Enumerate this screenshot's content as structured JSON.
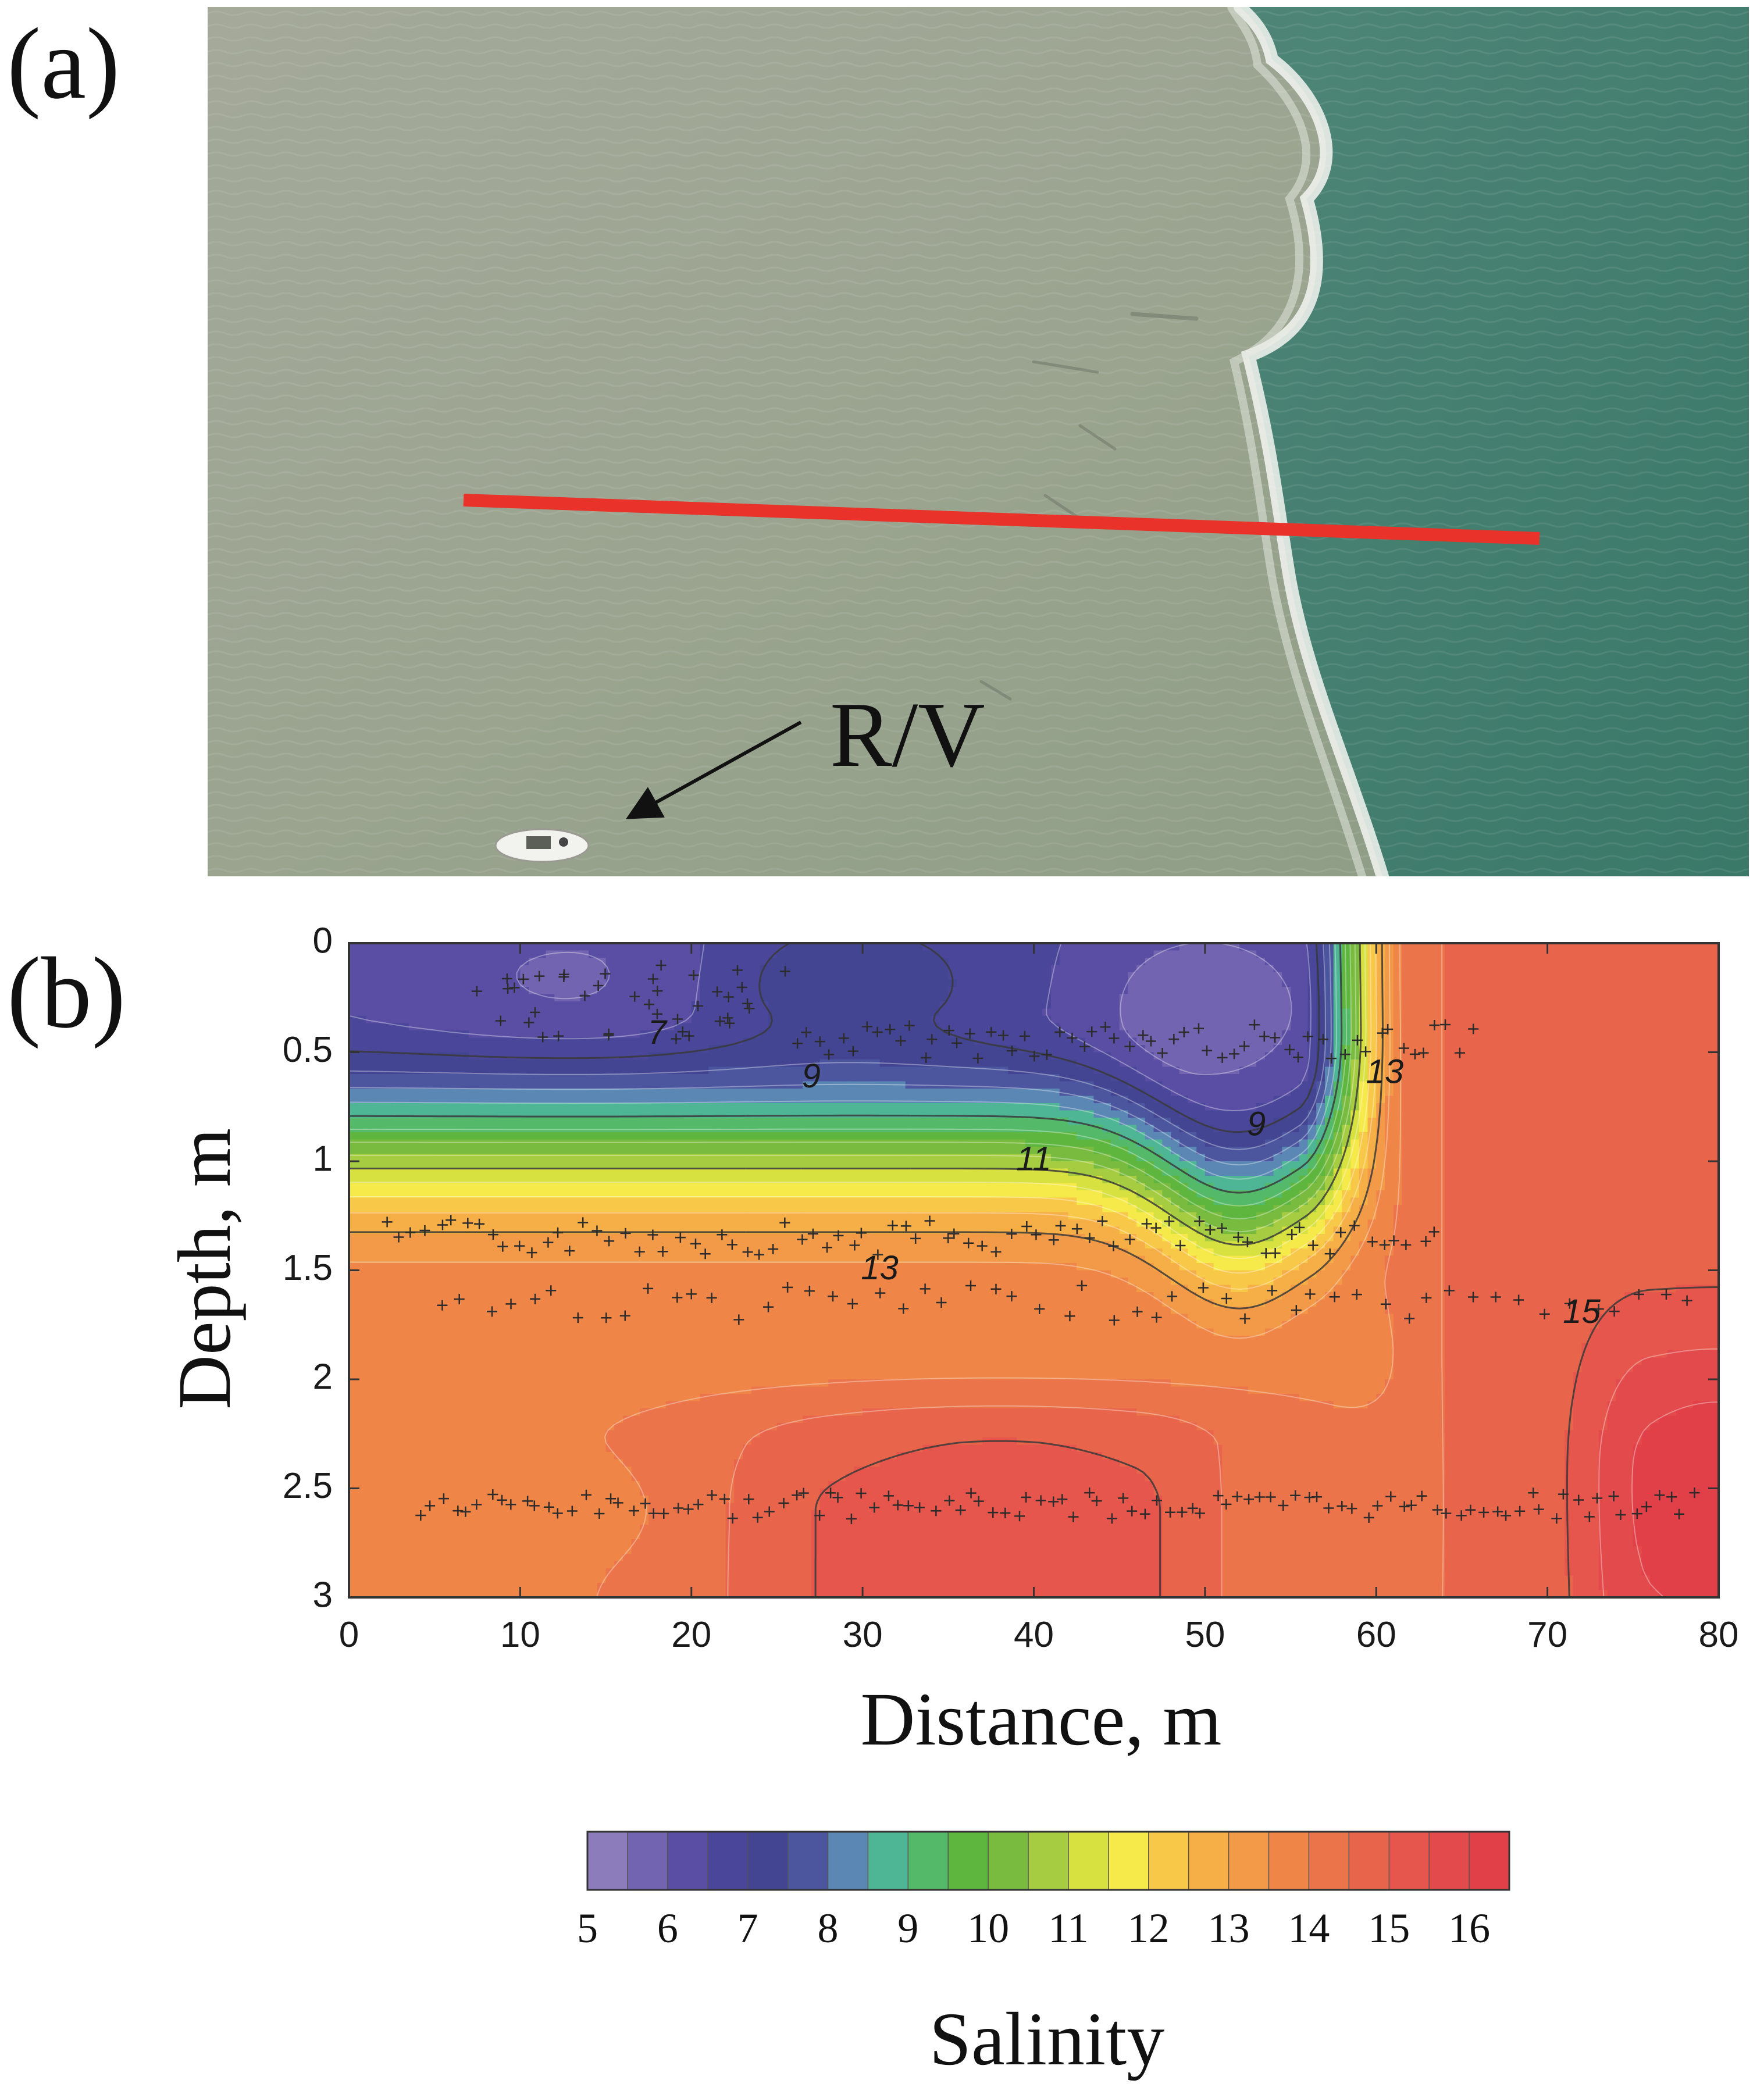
{
  "panel_a": {
    "label": "(a)",
    "annotation": "R/V",
    "colors": {
      "turbid_water": "#9aa48f",
      "ocean_water": "#3f7f70",
      "transect": "#e8322a",
      "foam": "#f4f6f2"
    }
  },
  "panel_b": {
    "label": "(b)"
  },
  "chart_data": {
    "type": "heatmap",
    "title": "",
    "xlabel": "Distance, m",
    "ylabel": "Depth, m",
    "xlim": [
      0,
      80
    ],
    "ylim": [
      3,
      0
    ],
    "x_ticks": [
      "0",
      "10",
      "20",
      "30",
      "40",
      "50",
      "60",
      "70",
      "80"
    ],
    "y_ticks": [
      "0",
      "0.5",
      "1",
      "1.5",
      "2",
      "2.5",
      "3"
    ],
    "colorbar": {
      "label": "Salinity",
      "min": 5,
      "max": 16.5,
      "step": 0.5,
      "tick_labels": [
        "5",
        "6",
        "7",
        "8",
        "9",
        "10",
        "11",
        "12",
        "13",
        "14",
        "15",
        "16"
      ],
      "colors": [
        "#8d7cbc",
        "#7264b0",
        "#5a4ea4",
        "#4a4699",
        "#434593",
        "#4b569f",
        "#5a87b4",
        "#4eb595",
        "#54ba6a",
        "#5fb63f",
        "#79bb3e",
        "#a6cc41",
        "#d7e140",
        "#f6e94a",
        "#f8c848",
        "#f6ae47",
        "#f39a48",
        "#ef8648",
        "#eb744a",
        "#e8644b",
        "#e6564c",
        "#e34a4c",
        "#e14049"
      ]
    },
    "contour_labels": [
      {
        "text": "7",
        "x": 18,
        "depth": 0.42
      },
      {
        "text": "9",
        "x": 27,
        "depth": 0.62
      },
      {
        "text": "9",
        "x": 53,
        "depth": 0.84
      },
      {
        "text": "11",
        "x": 40,
        "depth": 1.0
      },
      {
        "text": "13",
        "x": 60.5,
        "depth": 0.6
      },
      {
        "text": "13",
        "x": 31,
        "depth": 1.5
      },
      {
        "text": "15",
        "x": 72,
        "depth": 1.7
      }
    ],
    "sample_rows": [
      {
        "depth": 0.45,
        "x_from": 26,
        "x_to": 66,
        "n": 60
      },
      {
        "depth": 1.35,
        "x_from": 2,
        "x_to": 64,
        "n": 80
      },
      {
        "depth": 1.65,
        "x_from": 5,
        "x_to": 79,
        "n": 55
      },
      {
        "depth": 2.58,
        "x_from": 4,
        "x_to": 79,
        "n": 110
      }
    ]
  }
}
